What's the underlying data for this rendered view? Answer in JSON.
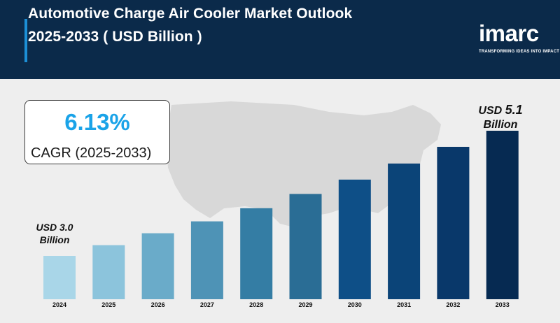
{
  "header": {
    "title_line1": "Automotive Charge Air Cooler Market Outlook",
    "title_line2": "2025-2033 ( USD Billion )"
  },
  "logo": {
    "word": "imarc",
    "tagline": "TRANSFORMING IDEAS INTO IMPACT"
  },
  "cagr": {
    "value": "6.13%",
    "label": "CAGR (2025-2033)"
  },
  "callouts": {
    "start_line1": "USD 3.0",
    "start_line2": "Billion",
    "end_prefix": "USD",
    "end_value": "5.1",
    "end_line2": "Billion"
  },
  "colors": {
    "header_bg": "#0b2a4a",
    "accent": "#1aa3e8",
    "bars": [
      "#a9d6e8",
      "#8cc4dc",
      "#6aabc9",
      "#4e93b6",
      "#347da4",
      "#2a6d95",
      "#0e4f87",
      "#0b4478",
      "#09386a",
      "#062a52"
    ]
  },
  "chart_data": {
    "type": "bar",
    "categories": [
      "2024",
      "2025",
      "2026",
      "2027",
      "2028",
      "2029",
      "2030",
      "2031",
      "2032",
      "2033"
    ],
    "values": [
      3.0,
      3.18,
      3.38,
      3.58,
      3.8,
      4.04,
      4.28,
      4.55,
      4.83,
      5.1
    ],
    "title": "Automotive Charge Air Cooler Market Outlook 2025-2033 ( USD Billion )",
    "xlabel": "",
    "ylabel": "",
    "grid": false,
    "unit": "USD Billion"
  }
}
